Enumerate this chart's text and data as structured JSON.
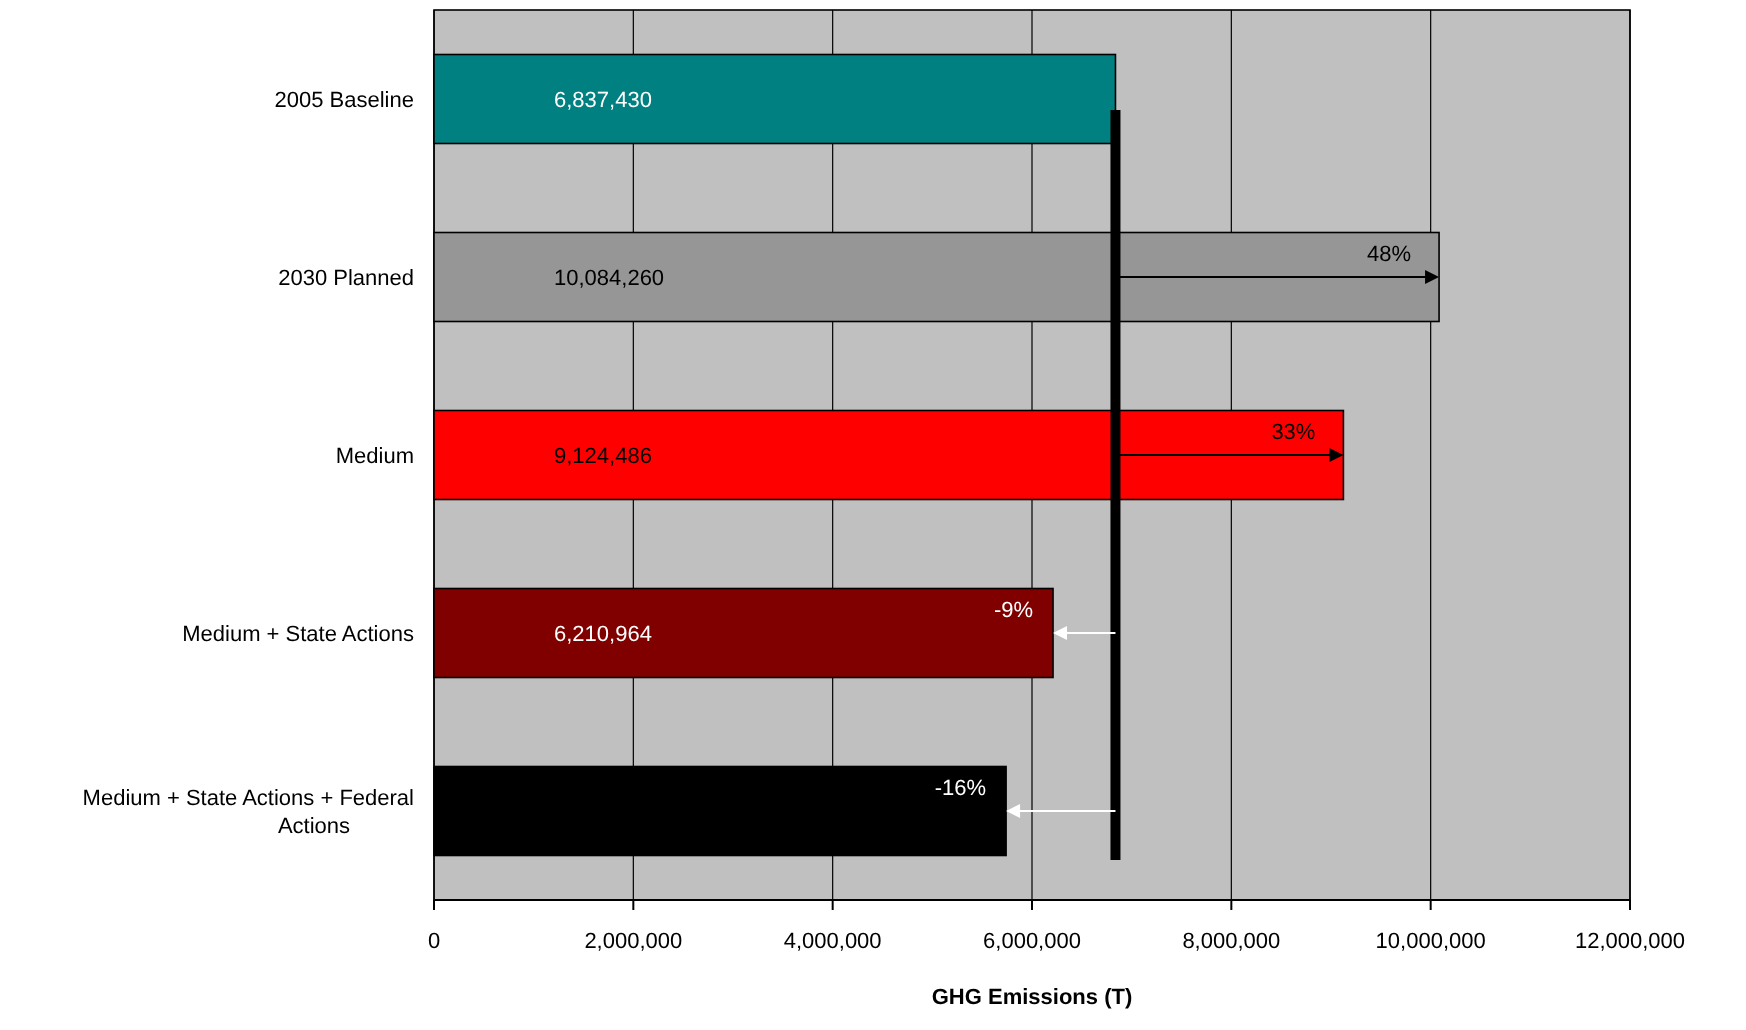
{
  "chart_data": {
    "type": "bar",
    "orientation": "horizontal",
    "xlabel": "GHG Emissions (T)",
    "categories": [
      "2005 Baseline",
      "2030 Planned",
      "Medium",
      "Medium + State Actions",
      "Medium + State Actions + Federal Actions"
    ],
    "values": [
      6837430,
      10084260,
      9124486,
      6210964,
      5740000
    ],
    "colors": [
      "#008080",
      "#969696",
      "#ff0000",
      "#800000",
      "#000000"
    ],
    "value_labels": [
      "6,837,430",
      "10,084,260",
      "9,124,486",
      "6,210,964",
      null
    ],
    "xlim": [
      0,
      12000000
    ],
    "xticks": [
      {
        "value": 0,
        "label": "0"
      },
      {
        "value": 2000000,
        "label": "2,000,000"
      },
      {
        "value": 4000000,
        "label": "4,000,000"
      },
      {
        "value": 6000000,
        "label": "6,000,000"
      },
      {
        "value": 8000000,
        "label": "8,000,000"
      },
      {
        "value": 10000000,
        "label": "10,000,000"
      },
      {
        "value": 12000000,
        "label": "12,000,000"
      }
    ],
    "grid": "x",
    "ref_lines": [
      {
        "axis": "x",
        "value": 6837430,
        "color": "#000000"
      }
    ],
    "annotations": [
      {
        "text": "48%",
        "x": 10084260,
        "y": "2030 Planned"
      },
      {
        "text": "33%",
        "x": 9124486,
        "y": "Medium"
      },
      {
        "text": "-9%",
        "x": 6210964,
        "y": "Medium + State Actions"
      },
      {
        "text": "-16%",
        "x": 5740000,
        "y": "Medium + State Actions + Federal Actions"
      }
    ]
  }
}
